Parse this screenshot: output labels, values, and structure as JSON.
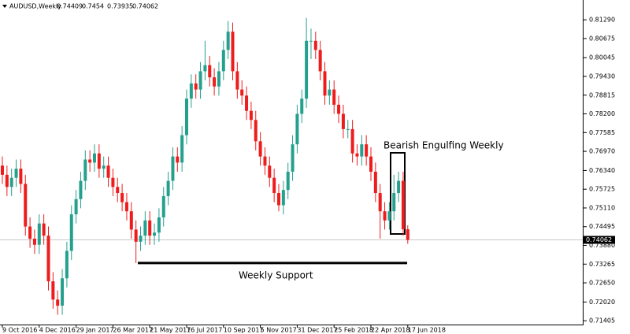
{
  "chart_data": {
    "type": "candlestick",
    "title": "AUDUSD,Weekly",
    "up_color": "#26a08e",
    "down_color": "#ee1c1c",
    "categories": [
      "9 Oct 2016",
      null,
      null,
      null,
      null,
      null,
      null,
      null,
      "4 Dec 2016",
      null,
      null,
      null,
      null,
      null,
      null,
      null,
      "29 Jan 2017",
      null,
      null,
      null,
      null,
      null,
      null,
      null,
      "26 Mar 2017",
      null,
      null,
      null,
      null,
      null,
      null,
      null,
      "21 May 2017",
      null,
      null,
      null,
      null,
      null,
      null,
      null,
      "16 Jul 2017",
      null,
      null,
      null,
      null,
      null,
      null,
      null,
      "10 Sep 2017",
      null,
      null,
      null,
      null,
      null,
      null,
      null,
      "5 Nov 2017",
      null,
      null,
      null,
      null,
      null,
      null,
      null,
      "31 Dec 2017",
      null,
      null,
      null,
      null,
      null,
      null,
      null,
      "25 Feb 2018",
      null,
      null,
      null,
      null,
      null,
      null,
      null,
      "22 Apr 2018",
      null,
      null,
      null,
      null,
      null,
      null,
      null,
      "17 Jun 2018"
    ],
    "open": [
      0.765,
      0.762,
      0.758,
      0.761,
      0.764,
      0.759,
      0.745,
      0.741,
      0.739,
      0.746,
      0.742,
      0.727,
      0.721,
      0.719,
      0.728,
      0.737,
      0.749,
      0.754,
      0.76,
      0.767,
      0.766,
      0.769,
      0.764,
      0.765,
      0.761,
      0.758,
      0.756,
      0.753,
      0.75,
      0.744,
      0.74,
      0.742,
      0.747,
      0.742,
      0.743,
      0.748,
      0.755,
      0.76,
      0.768,
      0.766,
      0.775,
      0.787,
      0.792,
      0.79,
      0.796,
      0.798,
      0.794,
      0.791,
      0.796,
      0.803,
      0.809,
      0.796,
      0.79,
      0.788,
      0.783,
      0.78,
      0.773,
      0.768,
      0.765,
      0.761,
      0.756,
      0.752,
      0.757,
      0.763,
      0.772,
      0.782,
      0.787,
      0.806,
      0.806,
      0.803,
      0.796,
      0.788,
      0.79,
      0.785,
      0.782,
      0.777,
      0.777,
      0.769,
      0.768,
      0.772,
      0.768,
      0.763,
      0.756,
      0.75,
      0.747,
      0.75,
      0.756,
      0.76,
      0.74409
    ],
    "high": [
      0.768,
      0.765,
      0.764,
      0.767,
      0.767,
      0.762,
      0.748,
      0.744,
      0.749,
      0.749,
      0.745,
      0.73,
      0.724,
      0.731,
      0.74,
      0.752,
      0.757,
      0.763,
      0.77,
      0.77,
      0.772,
      0.772,
      0.768,
      0.768,
      0.764,
      0.761,
      0.759,
      0.756,
      0.753,
      0.747,
      0.745,
      0.75,
      0.75,
      0.746,
      0.751,
      0.758,
      0.763,
      0.771,
      0.771,
      0.778,
      0.79,
      0.795,
      0.795,
      0.799,
      0.806,
      0.801,
      0.797,
      0.799,
      0.806,
      0.8125,
      0.812,
      0.799,
      0.793,
      0.791,
      0.786,
      0.783,
      0.776,
      0.771,
      0.768,
      0.764,
      0.759,
      0.76,
      0.766,
      0.775,
      0.785,
      0.79,
      0.8135,
      0.81,
      0.809,
      0.806,
      0.799,
      0.793,
      0.793,
      0.788,
      0.785,
      0.78,
      0.78,
      0.772,
      0.775,
      0.775,
      0.771,
      0.766,
      0.759,
      0.753,
      0.753,
      0.762,
      0.763,
      0.763,
      0.7454
    ],
    "low": [
      0.759,
      0.755,
      0.755,
      0.758,
      0.756,
      0.742,
      0.738,
      0.736,
      0.736,
      0.739,
      0.724,
      0.718,
      0.716,
      0.716,
      0.725,
      0.734,
      0.746,
      0.751,
      0.757,
      0.763,
      0.763,
      0.761,
      0.761,
      0.758,
      0.755,
      0.753,
      0.75,
      0.747,
      0.741,
      0.733,
      0.737,
      0.739,
      0.739,
      0.739,
      0.74,
      0.745,
      0.752,
      0.757,
      0.763,
      0.763,
      0.772,
      0.784,
      0.787,
      0.787,
      0.793,
      0.791,
      0.788,
      0.788,
      0.793,
      0.8,
      0.793,
      0.787,
      0.785,
      0.78,
      0.777,
      0.77,
      0.765,
      0.762,
      0.758,
      0.753,
      0.75,
      0.749,
      0.754,
      0.76,
      0.769,
      0.779,
      0.784,
      0.8,
      0.8,
      0.793,
      0.785,
      0.785,
      0.782,
      0.779,
      0.774,
      0.774,
      0.766,
      0.765,
      0.765,
      0.765,
      0.76,
      0.753,
      0.741,
      0.744,
      0.744,
      0.747,
      0.753,
      0.742,
      0.73935
    ],
    "close": [
      0.762,
      0.758,
      0.761,
      0.764,
      0.759,
      0.745,
      0.741,
      0.739,
      0.746,
      0.742,
      0.727,
      0.721,
      0.719,
      0.728,
      0.737,
      0.749,
      0.754,
      0.76,
      0.767,
      0.766,
      0.769,
      0.764,
      0.765,
      0.761,
      0.758,
      0.756,
      0.753,
      0.75,
      0.744,
      0.74,
      0.742,
      0.747,
      0.742,
      0.743,
      0.748,
      0.755,
      0.76,
      0.768,
      0.766,
      0.775,
      0.787,
      0.792,
      0.79,
      0.796,
      0.798,
      0.794,
      0.791,
      0.796,
      0.803,
      0.809,
      0.796,
      0.79,
      0.788,
      0.783,
      0.78,
      0.773,
      0.768,
      0.765,
      0.761,
      0.756,
      0.752,
      0.757,
      0.763,
      0.772,
      0.782,
      0.787,
      0.806,
      0.806,
      0.803,
      0.796,
      0.788,
      0.79,
      0.785,
      0.782,
      0.777,
      0.777,
      0.769,
      0.768,
      0.772,
      0.768,
      0.763,
      0.756,
      0.75,
      0.747,
      0.75,
      0.756,
      0.76,
      0.7441,
      0.74062
    ],
    "ylim": [
      0.7128,
      0.8194
    ],
    "yticks": [
      {
        "value": 0.8129,
        "label": "0.81290"
      },
      {
        "value": 0.80675,
        "label": "0.80675"
      },
      {
        "value": 0.80045,
        "label": "0.80045"
      },
      {
        "value": 0.7943,
        "label": "0.79430"
      },
      {
        "value": 0.78815,
        "label": "0.78815"
      },
      {
        "value": 0.782,
        "label": "0.78200"
      },
      {
        "value": 0.77585,
        "label": "0.77585"
      },
      {
        "value": 0.7697,
        "label": "0.76970"
      },
      {
        "value": 0.7634,
        "label": "0.76340"
      },
      {
        "value": 0.75725,
        "label": "0.75725"
      },
      {
        "value": 0.7511,
        "label": "0.75110"
      },
      {
        "value": 0.74495,
        "label": "0.74495"
      },
      {
        "value": 0.7388,
        "label": "0.73880"
      },
      {
        "value": 0.73265,
        "label": "0.73265"
      },
      {
        "value": 0.7265,
        "label": "0.72650"
      },
      {
        "value": 0.7202,
        "label": "0.72020"
      },
      {
        "value": 0.71405,
        "label": "0.71405"
      }
    ],
    "annotation": "Bearish Engulfing Weekly",
    "support": {
      "label": "Weekly Support",
      "value": 0.733
    }
  }
}
